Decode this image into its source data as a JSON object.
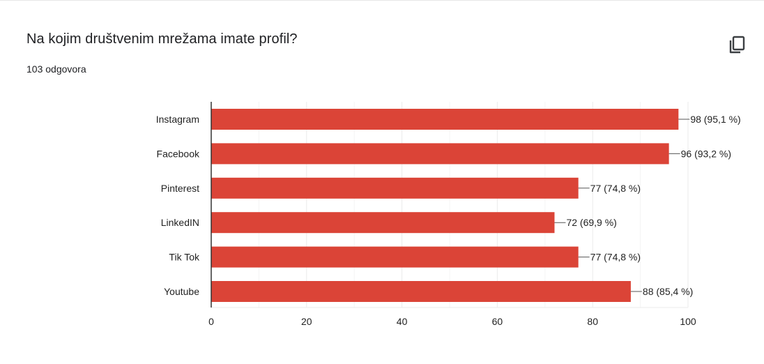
{
  "question": {
    "title": "Na kojim društvenim mrežama imate profil?",
    "responses": "103 odgovora"
  },
  "icons": {
    "copy": "copy-icon"
  },
  "colors": {
    "bar": "#db4437",
    "grid": "#ebebeb",
    "axis": "#333333"
  },
  "chart_data": {
    "type": "bar",
    "orientation": "horizontal",
    "categories": [
      "Instagram",
      "Facebook",
      "Pinterest",
      "LinkedIN",
      "Tik Tok",
      "Youtube"
    ],
    "values": [
      98,
      96,
      77,
      72,
      77,
      88
    ],
    "data_labels": [
      "98 (95,1 %)",
      "96 (93,2 %)",
      "77 (74,8 %)",
      "72 (69,9 %)",
      "77 (74,8 %)",
      "88 (85,4 %)"
    ],
    "x_ticks": [
      0,
      20,
      40,
      60,
      80,
      100
    ],
    "xlim": [
      0,
      100
    ],
    "grid": true,
    "legend": "none"
  }
}
